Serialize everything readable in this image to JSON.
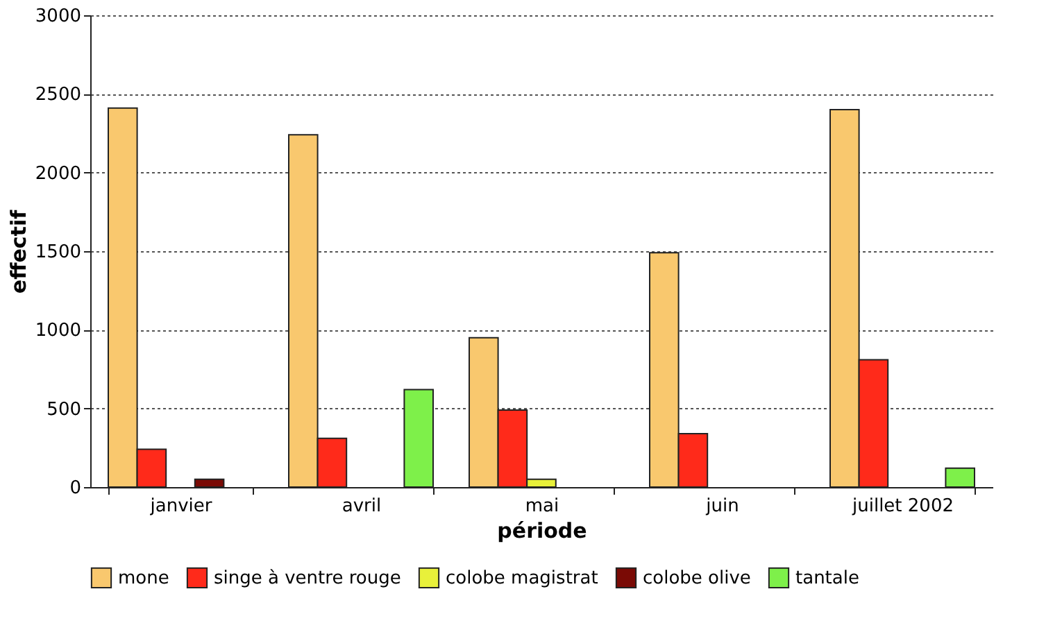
{
  "chart_data": {
    "type": "bar",
    "xlabel": "période",
    "ylabel": "effectif",
    "categories": [
      "janvier",
      "avril",
      "mai",
      "juin",
      "juillet 2002"
    ],
    "series": [
      {
        "name": "mone",
        "color": "#f9c86e",
        "values": [
          2410,
          2240,
          950,
          1490,
          2400
        ]
      },
      {
        "name": "singe à ventre rouge",
        "color": "#ff2a1a",
        "values": [
          240,
          310,
          490,
          340,
          810
        ]
      },
      {
        "name": "colobe magistrat",
        "color": "#e8f03a",
        "values": [
          null,
          null,
          50,
          null,
          null
        ]
      },
      {
        "name": "colobe olive",
        "color": "#7a0a05",
        "values": [
          50,
          null,
          null,
          null,
          null
        ]
      },
      {
        "name": "tantale",
        "color": "#7ef04a",
        "values": [
          null,
          620,
          null,
          null,
          120
        ]
      }
    ],
    "ylim": [
      0,
      3000
    ],
    "yticks": [
      0,
      500,
      1000,
      1500,
      2000,
      2500,
      3000
    ],
    "grid": "y",
    "legend": "bottom"
  }
}
